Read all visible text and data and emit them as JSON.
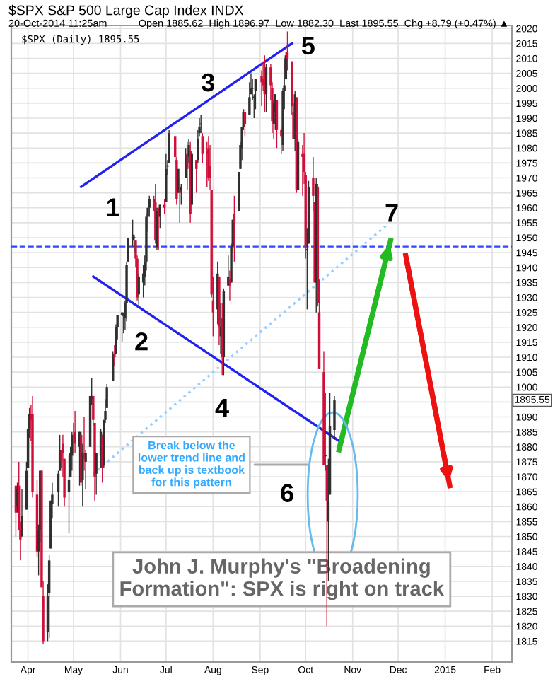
{
  "chart_data": {
    "type": "candlestick",
    "title": "$SPX S&P 500 Large Cap Index INDX",
    "subtitle": "20-Oct-2014 11:25am",
    "annotations": [
      "Open 1885.62  High 1896.97  Low 1882.30  Last 1895.55  Chg +8.79 (+0.47%) ▲",
      "$SPX (Daily) 1895.55",
      "1895.55",
      "1",
      "2",
      "3",
      "4",
      "5",
      "6",
      "7",
      "Break below the\nlower trend line and\nback up is textbook\nfor this pattern",
      "John J. Murphy's \"Broadening\nFormation\": SPX is right on track"
    ],
    "x": [
      "2014-03-24",
      "2014-03-25",
      "2014-03-26",
      "2014-03-27",
      "2014-03-28",
      "2014-03-31",
      "2014-04-01",
      "2014-04-02",
      "2014-04-03",
      "2014-04-04",
      "2014-04-07",
      "2014-04-08",
      "2014-04-09",
      "2014-04-10",
      "2014-04-11",
      "2014-04-14",
      "2014-04-15",
      "2014-04-16",
      "2014-04-17",
      "2014-04-21",
      "2014-04-22",
      "2014-04-23",
      "2014-04-24",
      "2014-04-25",
      "2014-04-28",
      "2014-04-29",
      "2014-04-30",
      "2014-05-01",
      "2014-05-02",
      "2014-05-05",
      "2014-05-06",
      "2014-05-07",
      "2014-05-08",
      "2014-05-09",
      "2014-05-12",
      "2014-05-13",
      "2014-05-14",
      "2014-05-15",
      "2014-05-16",
      "2014-05-19",
      "2014-05-20",
      "2014-05-21",
      "2014-05-22",
      "2014-05-23",
      "2014-05-27",
      "2014-05-28",
      "2014-05-29",
      "2014-05-30",
      "2014-06-02",
      "2014-06-03",
      "2014-06-04",
      "2014-06-05",
      "2014-06-06",
      "2014-06-09",
      "2014-06-10",
      "2014-06-11",
      "2014-06-12",
      "2014-06-13",
      "2014-06-16",
      "2014-06-17",
      "2014-06-18",
      "2014-06-19",
      "2014-06-20",
      "2014-06-23",
      "2014-06-24",
      "2014-06-25",
      "2014-06-26",
      "2014-06-27",
      "2014-06-30",
      "2014-07-01",
      "2014-07-02",
      "2014-07-03",
      "2014-07-07",
      "2014-07-08",
      "2014-07-09",
      "2014-07-10",
      "2014-07-11",
      "2014-07-14",
      "2014-07-15",
      "2014-07-16",
      "2014-07-17",
      "2014-07-18",
      "2014-07-21",
      "2014-07-22",
      "2014-07-23",
      "2014-07-24",
      "2014-07-25",
      "2014-07-28",
      "2014-07-29",
      "2014-07-30",
      "2014-07-31",
      "2014-08-01",
      "2014-08-04",
      "2014-08-05",
      "2014-08-06",
      "2014-08-07",
      "2014-08-08",
      "2014-08-11",
      "2014-08-12",
      "2014-08-13",
      "2014-08-14",
      "2014-08-15",
      "2014-08-18",
      "2014-08-19",
      "2014-08-20",
      "2014-08-21",
      "2014-08-22",
      "2014-08-25",
      "2014-08-26",
      "2014-08-27",
      "2014-08-28",
      "2014-08-29",
      "2014-09-02",
      "2014-09-03",
      "2014-09-04",
      "2014-09-05",
      "2014-09-08",
      "2014-09-09",
      "2014-09-10",
      "2014-09-11",
      "2014-09-12",
      "2014-09-15",
      "2014-09-16",
      "2014-09-17",
      "2014-09-18",
      "2014-09-19",
      "2014-09-22",
      "2014-09-23",
      "2014-09-24",
      "2014-09-25",
      "2014-09-26",
      "2014-09-29",
      "2014-09-30",
      "2014-10-01",
      "2014-10-02",
      "2014-10-03",
      "2014-10-06",
      "2014-10-07",
      "2014-10-08",
      "2014-10-09",
      "2014-10-10",
      "2014-10-13",
      "2014-10-14",
      "2014-10-15",
      "2014-10-16",
      "2014-10-17",
      "2014-10-20"
    ],
    "ohlc": [
      [
        1867,
        1867,
        1850,
        1858
      ],
      [
        1860,
        1868,
        1858,
        1866
      ],
      [
        1867,
        1875,
        1852,
        1852
      ],
      [
        1852,
        1855,
        1842,
        1849
      ],
      [
        1850,
        1866,
        1850,
        1857
      ],
      [
        1859,
        1875,
        1859,
        1872
      ],
      [
        1873,
        1886,
        1873,
        1886
      ],
      [
        1886,
        1893,
        1883,
        1891
      ],
      [
        1891,
        1894,
        1882,
        1889
      ],
      [
        1891,
        1897,
        1863,
        1865
      ],
      [
        1864,
        1869,
        1843,
        1845
      ],
      [
        1845,
        1854,
        1837,
        1852
      ],
      [
        1852,
        1872,
        1848,
        1872
      ],
      [
        1872,
        1872,
        1833,
        1833
      ],
      [
        1830,
        1835,
        1814,
        1815
      ],
      [
        1818,
        1834,
        1815,
        1830
      ],
      [
        1831,
        1844,
        1816,
        1842
      ],
      [
        1846,
        1862,
        1846,
        1862
      ],
      [
        1861,
        1868,
        1856,
        1864
      ],
      [
        1865,
        1872,
        1860,
        1871
      ],
      [
        1872,
        1884,
        1872,
        1879
      ],
      [
        1879,
        1879,
        1873,
        1875
      ],
      [
        1881,
        1884,
        1870,
        1878
      ],
      [
        1876,
        1876,
        1860,
        1863
      ],
      [
        1865,
        1877,
        1851,
        1869
      ],
      [
        1870,
        1880,
        1870,
        1878
      ],
      [
        1877,
        1885,
        1872,
        1884
      ],
      [
        1884,
        1888,
        1878,
        1883
      ],
      [
        1885,
        1892,
        1878,
        1881
      ],
      [
        1880,
        1885,
        1867,
        1885
      ],
      [
        1884,
        1885,
        1867,
        1868
      ],
      [
        1869,
        1881,
        1860,
        1878
      ],
      [
        1878,
        1890,
        1872,
        1876
      ],
      [
        1875,
        1879,
        1866,
        1878
      ],
      [
        1880,
        1897,
        1880,
        1897
      ],
      [
        1896,
        1903,
        1894,
        1897
      ],
      [
        1897,
        1897,
        1887,
        1889
      ],
      [
        1888,
        1888,
        1862,
        1870
      ],
      [
        1871,
        1878,
        1864,
        1878
      ],
      [
        1877,
        1886,
        1873,
        1885
      ],
      [
        1884,
        1884,
        1868,
        1873
      ],
      [
        1874,
        1889,
        1873,
        1889
      ],
      [
        1889,
        1896,
        1888,
        1892
      ],
      [
        1893,
        1901,
        1893,
        1900
      ],
      [
        1902,
        1912,
        1902,
        1911
      ],
      [
        1911,
        1914,
        1907,
        1910
      ],
      [
        1911,
        1921,
        1911,
        1920
      ],
      [
        1920,
        1924,
        1916,
        1924
      ],
      [
        1924,
        1925,
        1915,
        1925
      ],
      [
        1924,
        1925,
        1918,
        1924
      ],
      [
        1923,
        1929,
        1919,
        1928
      ],
      [
        1928,
        1942,
        1922,
        1941
      ],
      [
        1942,
        1950,
        1942,
        1950
      ],
      [
        1949,
        1956,
        1947,
        1951
      ],
      [
        1950,
        1951,
        1945,
        1950
      ],
      [
        1949,
        1949,
        1940,
        1943
      ],
      [
        1943,
        1944,
        1929,
        1930
      ],
      [
        1931,
        1938,
        1927,
        1937
      ],
      [
        1935,
        1941,
        1930,
        1938
      ],
      [
        1937,
        1944,
        1934,
        1942
      ],
      [
        1942,
        1958,
        1939,
        1957
      ],
      [
        1957,
        1960,
        1952,
        1960
      ],
      [
        1960,
        1964,
        1957,
        1963
      ],
      [
        1963,
        1964,
        1959,
        1962
      ],
      [
        1962,
        1968,
        1948,
        1949
      ],
      [
        1947,
        1960,
        1946,
        1959
      ],
      [
        1960,
        1960,
        1946,
        1957
      ],
      [
        1957,
        1961,
        1953,
        1961
      ],
      [
        1961,
        1963,
        1958,
        1960
      ],
      [
        1962,
        1978,
        1962,
        1973
      ],
      [
        1974,
        1976,
        1971,
        1974
      ],
      [
        1975,
        1986,
        1975,
        1985
      ],
      [
        1984,
        1984,
        1975,
        1977
      ],
      [
        1976,
        1977,
        1961,
        1963
      ],
      [
        1965,
        1973,
        1965,
        1973
      ],
      [
        1966,
        1970,
        1955,
        1965
      ],
      [
        1966,
        1968,
        1961,
        1967
      ],
      [
        1970,
        1980,
        1970,
        1977
      ],
      [
        1978,
        1982,
        1966,
        1973
      ],
      [
        1977,
        1983,
        1975,
        1981
      ],
      [
        1979,
        1982,
        1955,
        1958
      ],
      [
        1961,
        1979,
        1961,
        1978
      ],
      [
        1976,
        1976,
        1965,
        1973
      ],
      [
        1976,
        1986,
        1975,
        1983
      ],
      [
        1985,
        1990,
        1984,
        1987
      ],
      [
        1988,
        1991,
        1985,
        1988
      ],
      [
        1984,
        1985,
        1975,
        1978
      ],
      [
        1979,
        1982,
        1967,
        1978
      ],
      [
        1980,
        1984,
        1969,
        1970
      ],
      [
        1974,
        1981,
        1966,
        1970
      ],
      [
        1966,
        1966,
        1930,
        1931
      ],
      [
        1929,
        1937,
        1917,
        1925
      ],
      [
        1926,
        1942,
        1921,
        1938
      ],
      [
        1937,
        1937,
        1914,
        1920
      ],
      [
        1917,
        1928,
        1911,
        1920
      ],
      [
        1923,
        1928,
        1904,
        1910
      ],
      [
        1910,
        1933,
        1904,
        1932
      ],
      [
        1934,
        1944,
        1934,
        1937
      ],
      [
        1936,
        1939,
        1929,
        1934
      ],
      [
        1935,
        1948,
        1935,
        1947
      ],
      [
        1947,
        1956,
        1945,
        1956
      ],
      [
        1958,
        1964,
        1942,
        1955
      ],
      [
        1959,
        1972,
        1959,
        1972
      ],
      [
        1973,
        1982,
        1973,
        1981
      ],
      [
        1980,
        1987,
        1976,
        1987
      ],
      [
        1987,
        1993,
        1986,
        1992
      ],
      [
        1992,
        1993,
        1984,
        1988
      ],
      [
        1991,
        2002,
        1991,
        1997
      ],
      [
        1998,
        2005,
        1998,
        2000
      ],
      [
        2000,
        2003,
        1996,
        2000
      ],
      [
        1997,
        1998,
        1990,
        1997
      ],
      [
        1999,
        2003,
        1993,
        2003
      ],
      [
        2004,
        2006,
        1994,
        2002
      ],
      [
        2003,
        2009,
        1999,
        2001
      ],
      [
        2002,
        2011,
        1992,
        1998
      ],
      [
        1998,
        2008,
        1992,
        2007
      ],
      [
        2007,
        2008,
        1996,
        2001
      ],
      [
        2000,
        2002,
        1985,
        1989
      ],
      [
        1988,
        1996,
        1983,
        1995
      ],
      [
        1992,
        1998,
        1986,
        1998
      ],
      [
        1996,
        1996,
        1980,
        1986
      ],
      [
        1986,
        1987,
        1978,
        1984
      ],
      [
        1981,
        2000,
        1979,
        1999
      ],
      [
        1999,
        2010,
        1993,
        2001
      ],
      [
        2003,
        2012,
        2003,
        2011
      ],
      [
        2012,
        2019,
        2006,
        2010
      ],
      [
        2009,
        2009,
        1991,
        1994
      ],
      [
        1992,
        1995,
        1983,
        1983
      ],
      [
        1983,
        1999,
        1979,
        1998
      ],
      [
        1997,
        1997,
        1965,
        1966
      ],
      [
        1966,
        1983,
        1966,
        1982
      ],
      [
        1978,
        1981,
        1964,
        1977
      ],
      [
        1978,
        1985,
        1968,
        1972
      ],
      [
        1971,
        1972,
        1943,
        1947
      ],
      [
        1946,
        1953,
        1926,
        1946
      ],
      [
        1948,
        1969,
        1948,
        1967
      ],
      [
        1970,
        1977,
        1959,
        1964
      ],
      [
        1962,
        1962,
        1935,
        1935
      ],
      [
        1935,
        1970,
        1925,
        1968
      ],
      [
        1967,
        1968,
        1927,
        1928
      ],
      [
        1925,
        1936,
        1906,
        1906
      ],
      [
        1905,
        1912,
        1874,
        1874
      ],
      [
        1877,
        1898,
        1872,
        1877
      ],
      [
        1874,
        1874,
        1820,
        1862
      ],
      [
        1855,
        1876,
        1835,
        1862
      ],
      [
        1864,
        1898,
        1864,
        1887
      ],
      [
        1885.62,
        1896.97,
        1882.3,
        1895.55
      ]
    ],
    "series": [
      {
        "type": "line",
        "color": "#2222ee",
        "line_style": "solid",
        "x": [
          "2014-05-06",
          "2014-09-22"
        ],
        "values": [
          1967,
          2015
        ]
      },
      {
        "type": "line",
        "color": "#2222ee",
        "line_style": "solid",
        "x": [
          "2014-05-14",
          "2014-10-23"
        ],
        "values": [
          1937,
          1882
        ]
      },
      {
        "type": "line",
        "color": "#99ccff",
        "line_style": "dotted",
        "x": [
          "2014-05-14",
          "2014-11-23"
        ],
        "values": [
          1871,
          1954
        ]
      },
      {
        "type": "line",
        "color": "#22bb22",
        "line_style": "solid",
        "x": [
          "2014-10-23",
          "2014-11-26"
        ],
        "values": [
          1879,
          1949
        ]
      },
      {
        "type": "line",
        "color": "#ee1111",
        "line_style": "solid",
        "x": [
          "2014-12-06",
          "2015-01-04"
        ],
        "values": [
          1944,
          1867
        ]
      }
    ],
    "ref_lines": [
      {
        "axis": "y",
        "value": 1947,
        "color": "#3344ff",
        "line_style": "dashed"
      }
    ],
    "xlim": [
      "2014-03-21",
      "2015-02-14"
    ],
    "xticks": [
      {
        "value": "2014-04-01",
        "label": "Apr"
      },
      {
        "value": "2014-05-01",
        "label": "May"
      },
      {
        "value": "2014-06-01",
        "label": "Jun"
      },
      {
        "value": "2014-07-01",
        "label": "Jul"
      },
      {
        "value": "2014-08-01",
        "label": "Aug"
      },
      {
        "value": "2014-09-01",
        "label": "Sep"
      },
      {
        "value": "2014-10-01",
        "label": "Oct"
      },
      {
        "value": "2014-11-01",
        "label": "Nov"
      },
      {
        "value": "2014-12-01",
        "label": "Dec"
      },
      {
        "value": "2015-01-01",
        "label": "2015"
      },
      {
        "value": "2015-02-01",
        "label": "Feb"
      }
    ],
    "ylim": [
      1808,
      2021
    ],
    "yticks": [
      1815,
      1820,
      1825,
      1830,
      1835,
      1840,
      1845,
      1850,
      1855,
      1860,
      1865,
      1870,
      1875,
      1880,
      1885,
      1890,
      {
        "value": 1895,
        "label": null
      },
      1900,
      1905,
      1910,
      1915,
      1920,
      1925,
      1930,
      1935,
      1940,
      1945,
      1950,
      1955,
      1960,
      1965,
      1970,
      1975,
      1980,
      1985,
      1990,
      1995,
      2000,
      2005,
      2010,
      2015,
      2020
    ],
    "grid": true,
    "legend": false
  }
}
